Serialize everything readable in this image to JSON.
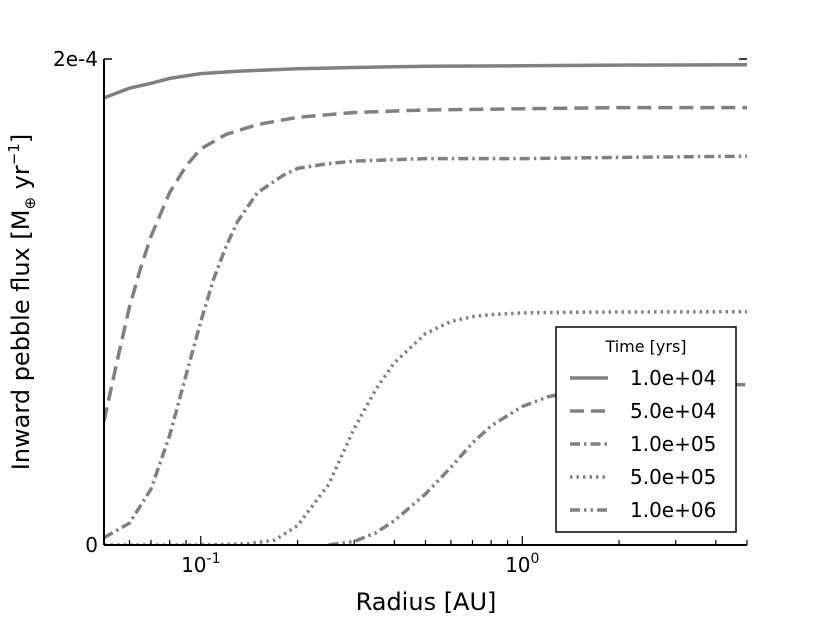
{
  "chart_data": {
    "type": "line",
    "xlabel": "Radius [AU]",
    "ylabel_main": "Inward pebble flux [M",
    "ylabel_sub": "⊕",
    "ylabel_mid": " yr",
    "ylabel_sup": "−1",
    "ylabel_end": "]",
    "xscale": "log",
    "xlim": [
      0.05,
      5.0
    ],
    "ylim": [
      0,
      0.0002
    ],
    "yticks": [
      {
        "value": 0,
        "label": "0"
      },
      {
        "value": 0.0002,
        "label": "2e-4"
      }
    ],
    "xticks": [
      {
        "value": 0.1,
        "base": "10",
        "exp": "-1"
      },
      {
        "value": 1.0,
        "base": "10",
        "exp": "0"
      }
    ],
    "line_color": "#808080",
    "legend": {
      "title": "Time [yrs]",
      "placement": "lower-right"
    },
    "series": [
      {
        "name": "1.0e+04",
        "dash": "solid",
        "x": [
          0.05,
          0.06,
          0.07,
          0.08,
          0.1,
          0.13,
          0.2,
          0.3,
          0.5,
          1.0,
          2.0,
          5.0
        ],
        "values": [
          0.000184,
          0.000188,
          0.00019,
          0.000192,
          0.000194,
          0.000195,
          0.000196,
          0.0001965,
          0.000197,
          0.0001972,
          0.0001975,
          0.0001976
        ]
      },
      {
        "name": "5.0e+04",
        "dash": "dashed",
        "x": [
          0.05,
          0.055,
          0.06,
          0.065,
          0.07,
          0.08,
          0.09,
          0.1,
          0.12,
          0.15,
          0.2,
          0.3,
          0.5,
          1.0,
          2.0,
          5.0
        ],
        "values": [
          5.1e-05,
          7.6e-05,
          9.8e-05,
          0.000114,
          0.000127,
          0.000145,
          0.000156,
          0.000163,
          0.000169,
          0.000173,
          0.000176,
          0.000178,
          0.000179,
          0.0001795,
          0.00018,
          0.00018
        ]
      },
      {
        "name": "1.0e+05",
        "dash": "dashdot",
        "x": [
          0.05,
          0.06,
          0.07,
          0.08,
          0.09,
          0.1,
          0.11,
          0.12,
          0.13,
          0.15,
          0.18,
          0.2,
          0.25,
          0.3,
          0.5,
          1.0,
          2.0,
          5.0
        ],
        "values": [
          3e-06,
          9e-06,
          2.3e-05,
          4.5e-05,
          7e-05,
          9.2e-05,
          0.00011,
          0.000123,
          0.000133,
          0.000145,
          0.000152,
          0.000155,
          0.000157,
          0.000158,
          0.000159,
          0.000159,
          0.0001595,
          0.00016
        ]
      },
      {
        "name": "5.0e+05",
        "dash": "dotted",
        "x": [
          0.05,
          0.1,
          0.14,
          0.17,
          0.2,
          0.25,
          0.3,
          0.35,
          0.4,
          0.5,
          0.6,
          0.7,
          0.8,
          1.0,
          1.5,
          2.0,
          5.0
        ],
        "values": [
          0,
          0,
          5e-07,
          2e-06,
          8e-06,
          2.5e-05,
          4.8e-05,
          6.4e-05,
          7.5e-05,
          8.7e-05,
          9.2e-05,
          9.4e-05,
          9.48e-05,
          9.55e-05,
          9.58e-05,
          9.59e-05,
          9.6e-05
        ]
      },
      {
        "name": "1.0e+06",
        "dash": "dashdotdot",
        "x": [
          0.25,
          0.3,
          0.35,
          0.4,
          0.5,
          0.6,
          0.7,
          0.8,
          1.0,
          1.2,
          1.5,
          2.0,
          3.0,
          5.0
        ],
        "values": [
          0,
          1.5e-06,
          5e-06,
          1e-05,
          2.1e-05,
          3.2e-05,
          4.2e-05,
          4.9e-05,
          5.7e-05,
          6.1e-05,
          6.35e-05,
          6.5e-05,
          6.58e-05,
          6.6e-05
        ]
      }
    ]
  }
}
